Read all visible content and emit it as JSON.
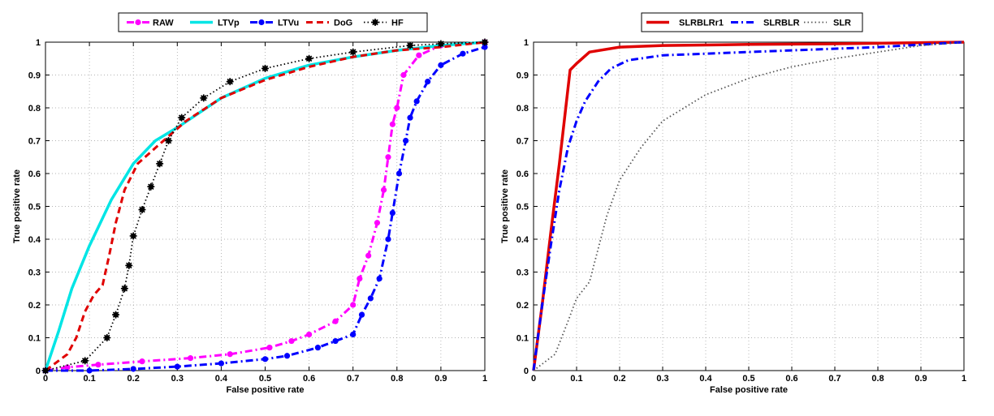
{
  "chart_data": [
    {
      "type": "line",
      "title": "",
      "xlabel": "False positive rate",
      "ylabel": "True positive rate",
      "xlim": [
        0,
        1
      ],
      "ylim": [
        0,
        1
      ],
      "grid": true,
      "legend_placement": "top-outside",
      "x_ticks": [
        "0",
        "0.1",
        "0.2",
        "0.3",
        "0.4",
        "0.5",
        "0.6",
        "0.7",
        "0.8",
        "0.9",
        "1"
      ],
      "y_ticks": [
        "0",
        "0.1",
        "0.2",
        "0.3",
        "0.4",
        "0.5",
        "0.6",
        "0.7",
        "0.8",
        "0.9",
        "1"
      ],
      "series": [
        {
          "name": "RAW",
          "color": "#ff00ff",
          "style": "dashdot",
          "marker": "dot",
          "points": [
            [
              0,
              0
            ],
            [
              0.05,
              0.01
            ],
            [
              0.12,
              0.018
            ],
            [
              0.22,
              0.028
            ],
            [
              0.33,
              0.038
            ],
            [
              0.42,
              0.05
            ],
            [
              0.51,
              0.07
            ],
            [
              0.56,
              0.09
            ],
            [
              0.6,
              0.11
            ],
            [
              0.66,
              0.15
            ],
            [
              0.7,
              0.2
            ],
            [
              0.715,
              0.28
            ],
            [
              0.735,
              0.35
            ],
            [
              0.755,
              0.45
            ],
            [
              0.77,
              0.55
            ],
            [
              0.78,
              0.65
            ],
            [
              0.79,
              0.75
            ],
            [
              0.8,
              0.8
            ],
            [
              0.815,
              0.9
            ],
            [
              0.85,
              0.96
            ],
            [
              0.9,
              0.99
            ],
            [
              1,
              1
            ]
          ]
        },
        {
          "name": "LTVp",
          "color": "#00e5e5",
          "style": "solid",
          "marker": "none",
          "points": [
            [
              0,
              0
            ],
            [
              0.03,
              0.12
            ],
            [
              0.06,
              0.25
            ],
            [
              0.1,
              0.38
            ],
            [
              0.15,
              0.52
            ],
            [
              0.2,
              0.63
            ],
            [
              0.25,
              0.7
            ],
            [
              0.3,
              0.74
            ],
            [
              0.4,
              0.83
            ],
            [
              0.5,
              0.89
            ],
            [
              0.6,
              0.93
            ],
            [
              0.7,
              0.955
            ],
            [
              0.8,
              0.975
            ],
            [
              0.9,
              0.99
            ],
            [
              1,
              1
            ]
          ]
        },
        {
          "name": "LTVu",
          "color": "#0000ff",
          "style": "dashdot",
          "marker": "dot",
          "points": [
            [
              0,
              0
            ],
            [
              0.1,
              0
            ],
            [
              0.2,
              0.005
            ],
            [
              0.3,
              0.012
            ],
            [
              0.4,
              0.022
            ],
            [
              0.5,
              0.035
            ],
            [
              0.55,
              0.045
            ],
            [
              0.62,
              0.07
            ],
            [
              0.66,
              0.09
            ],
            [
              0.7,
              0.11
            ],
            [
              0.72,
              0.17
            ],
            [
              0.74,
              0.22
            ],
            [
              0.76,
              0.28
            ],
            [
              0.78,
              0.4
            ],
            [
              0.79,
              0.48
            ],
            [
              0.805,
              0.6
            ],
            [
              0.82,
              0.7
            ],
            [
              0.83,
              0.77
            ],
            [
              0.845,
              0.82
            ],
            [
              0.87,
              0.88
            ],
            [
              0.9,
              0.93
            ],
            [
              0.95,
              0.965
            ],
            [
              1,
              0.985
            ]
          ]
        },
        {
          "name": "DoG",
          "color": "#e00000",
          "style": "dashed",
          "marker": "none",
          "points": [
            [
              0,
              0
            ],
            [
              0.05,
              0.05
            ],
            [
              0.07,
              0.1
            ],
            [
              0.09,
              0.18
            ],
            [
              0.11,
              0.23
            ],
            [
              0.13,
              0.26
            ],
            [
              0.145,
              0.35
            ],
            [
              0.16,
              0.45
            ],
            [
              0.18,
              0.55
            ],
            [
              0.21,
              0.63
            ],
            [
              0.26,
              0.69
            ],
            [
              0.32,
              0.76
            ],
            [
              0.4,
              0.83
            ],
            [
              0.5,
              0.885
            ],
            [
              0.6,
              0.925
            ],
            [
              0.7,
              0.955
            ],
            [
              0.8,
              0.975
            ],
            [
              0.9,
              0.985
            ],
            [
              1,
              1
            ]
          ]
        },
        {
          "name": "HF",
          "color": "#000000",
          "style": "dotted",
          "marker": "star",
          "points": [
            [
              0,
              0
            ],
            [
              0.09,
              0.03
            ],
            [
              0.14,
              0.1
            ],
            [
              0.16,
              0.17
            ],
            [
              0.18,
              0.25
            ],
            [
              0.19,
              0.32
            ],
            [
              0.2,
              0.41
            ],
            [
              0.22,
              0.49
            ],
            [
              0.24,
              0.56
            ],
            [
              0.26,
              0.63
            ],
            [
              0.28,
              0.7
            ],
            [
              0.31,
              0.77
            ],
            [
              0.36,
              0.83
            ],
            [
              0.42,
              0.88
            ],
            [
              0.5,
              0.92
            ],
            [
              0.6,
              0.95
            ],
            [
              0.7,
              0.97
            ],
            [
              0.83,
              0.99
            ],
            [
              0.9,
              0.995
            ],
            [
              1,
              1
            ]
          ]
        }
      ]
    },
    {
      "type": "line",
      "title": "",
      "xlabel": "False positive rate",
      "ylabel": "True positive rate",
      "xlim": [
        0,
        1
      ],
      "ylim": [
        0,
        1
      ],
      "grid": true,
      "legend_placement": "top-outside",
      "x_ticks": [
        "0",
        "0.1",
        "0.2",
        "0.3",
        "0.4",
        "0.5",
        "0.6",
        "0.7",
        "0.8",
        "0.9",
        "1"
      ],
      "y_ticks": [
        "0",
        "0.1",
        "0.2",
        "0.3",
        "0.4",
        "0.5",
        "0.6",
        "0.7",
        "0.8",
        "0.9",
        "1"
      ],
      "series": [
        {
          "name": "SLRBLRr1",
          "color": "#e00000",
          "style": "solid",
          "marker": "none",
          "points": [
            [
              0,
              0
            ],
            [
              0.02,
              0.2
            ],
            [
              0.04,
              0.42
            ],
            [
              0.06,
              0.63
            ],
            [
              0.085,
              0.915
            ],
            [
              0.1,
              0.935
            ],
            [
              0.13,
              0.97
            ],
            [
              0.2,
              0.985
            ],
            [
              0.3,
              0.99
            ],
            [
              0.5,
              0.993
            ],
            [
              0.7,
              0.995
            ],
            [
              1,
              1
            ]
          ]
        },
        {
          "name": "SLRBLR",
          "color": "#0000ff",
          "style": "dashdot",
          "marker": "none",
          "points": [
            [
              0,
              0
            ],
            [
              0.02,
              0.2
            ],
            [
              0.04,
              0.38
            ],
            [
              0.06,
              0.55
            ],
            [
              0.08,
              0.68
            ],
            [
              0.1,
              0.76
            ],
            [
              0.12,
              0.82
            ],
            [
              0.15,
              0.88
            ],
            [
              0.18,
              0.92
            ],
            [
              0.22,
              0.945
            ],
            [
              0.3,
              0.96
            ],
            [
              0.4,
              0.965
            ],
            [
              0.6,
              0.975
            ],
            [
              0.8,
              0.985
            ],
            [
              1,
              1
            ]
          ]
        },
        {
          "name": "SLR",
          "color": "#555555",
          "style": "dotted",
          "marker": "none",
          "points": [
            [
              0,
              0
            ],
            [
              0.05,
              0.05
            ],
            [
              0.08,
              0.15
            ],
            [
              0.1,
              0.22
            ],
            [
              0.13,
              0.27
            ],
            [
              0.15,
              0.37
            ],
            [
              0.17,
              0.47
            ],
            [
              0.2,
              0.58
            ],
            [
              0.25,
              0.68
            ],
            [
              0.3,
              0.76
            ],
            [
              0.4,
              0.84
            ],
            [
              0.5,
              0.89
            ],
            [
              0.6,
              0.925
            ],
            [
              0.7,
              0.95
            ],
            [
              0.8,
              0.97
            ],
            [
              0.9,
              0.99
            ],
            [
              1,
              1
            ]
          ]
        }
      ]
    }
  ]
}
